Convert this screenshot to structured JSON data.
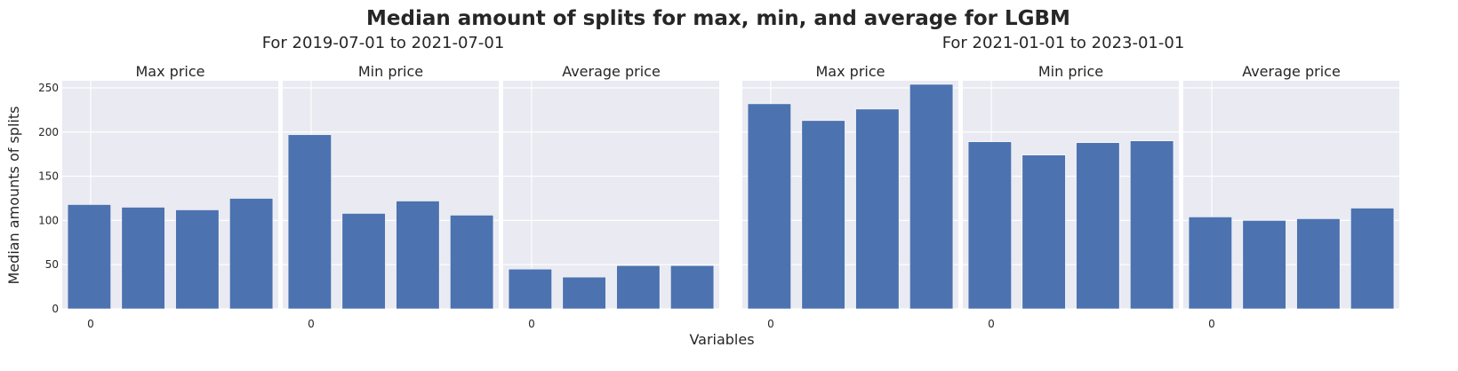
{
  "chart_data": {
    "type": "bar",
    "title": "Median amount of splits for max, min, and average for LGBM",
    "xlabel": "Variables",
    "ylabel": "Median amounts of splits",
    "ylim": [
      0,
      258
    ],
    "yticks": [
      0,
      50,
      100,
      150,
      200,
      250
    ],
    "grid": true,
    "bar_color": "#4c72b0",
    "panel_bg": "#eaeaf2",
    "grid_color": "#ffffff",
    "groups": [
      {
        "title": "For 2019-07-01 to 2021-07-01",
        "panels": [
          {
            "title": "Max price",
            "xtick": "0",
            "values": [
              118,
              115,
              112,
              125
            ]
          },
          {
            "title": "Min price",
            "xtick": "0",
            "values": [
              197,
              108,
              122,
              106
            ]
          },
          {
            "title": "Average price",
            "xtick": "0",
            "values": [
              45,
              36,
              49,
              49
            ]
          }
        ]
      },
      {
        "title": "For 2021-01-01 to 2023-01-01",
        "panels": [
          {
            "title": "Max price",
            "xtick": "0",
            "values": [
              232,
              213,
              226,
              254
            ]
          },
          {
            "title": "Min price",
            "xtick": "0",
            "values": [
              189,
              174,
              188,
              190
            ]
          },
          {
            "title": "Average price",
            "xtick": "0",
            "values": [
              104,
              100,
              102,
              114
            ]
          }
        ]
      }
    ]
  }
}
